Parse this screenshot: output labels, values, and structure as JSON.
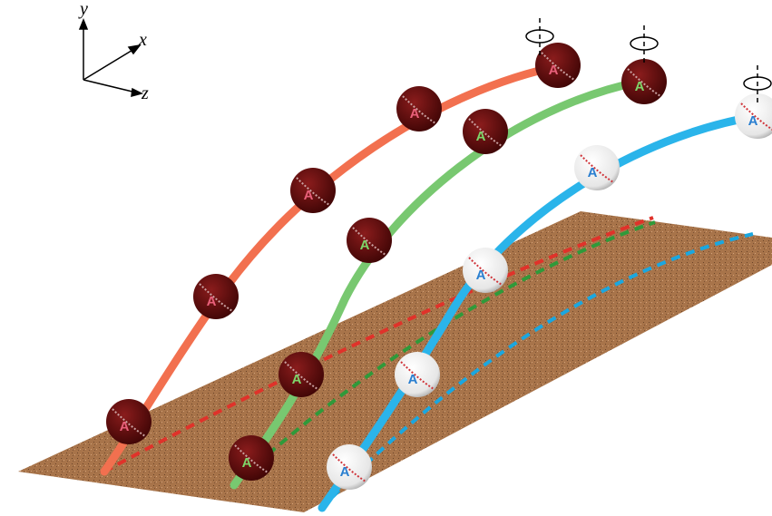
{
  "axes": {
    "x": "x",
    "y": "y",
    "z": "z"
  },
  "ball_label": "A"
}
